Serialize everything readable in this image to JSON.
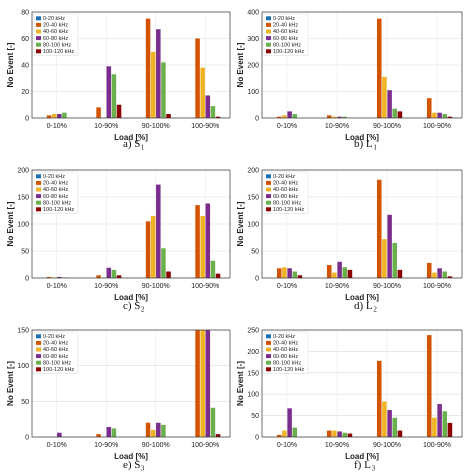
{
  "legend_labels": [
    "0-20 kHz",
    "20-40 kHz",
    "40-60 kHz",
    "60-80 kHz",
    "80-100 kHz",
    "100-120 kHz"
  ],
  "series_colors": [
    "#1f6fb4",
    "#d35400",
    "#f0b323",
    "#7b2d8e",
    "#6ab04c",
    "#8b0000"
  ],
  "categories": [
    "0-10%",
    "10-90%",
    "90-100%",
    "100-90%"
  ],
  "xlabel": "Load [%]",
  "ylabel": "No Event [-]",
  "chart_data": [
    {
      "type": "bar",
      "caption_main": "a) S",
      "caption_sub": "1",
      "categories": [
        "0-10%",
        "10-90%",
        "90-100%",
        "100-90%"
      ],
      "ylim": [
        0,
        80
      ],
      "yticks": [
        0,
        20,
        40,
        60,
        80
      ],
      "xlabel": "Load [%]",
      "ylabel": "No Event [-]",
      "grid": true,
      "legend": "top-left",
      "series": [
        {
          "name": "0-20 kHz",
          "values": [
            0,
            0,
            0,
            0
          ]
        },
        {
          "name": "20-40 kHz",
          "values": [
            2,
            8,
            75,
            60
          ]
        },
        {
          "name": "40-60 kHz",
          "values": [
            3,
            0,
            50,
            38
          ]
        },
        {
          "name": "60-80 kHz",
          "values": [
            3,
            39,
            67,
            17
          ]
        },
        {
          "name": "80-100 kHz",
          "values": [
            4,
            33,
            42,
            9
          ]
        },
        {
          "name": "100-120 kHz",
          "values": [
            0,
            10,
            3,
            1
          ]
        }
      ]
    },
    {
      "type": "bar",
      "caption_main": "b) L",
      "caption_sub": "1",
      "categories": [
        "0-10%",
        "10-90%",
        "90-100%",
        "100-90%"
      ],
      "ylim": [
        0,
        400
      ],
      "yticks": [
        0,
        100,
        200,
        300,
        400
      ],
      "xlabel": "Load [%]",
      "ylabel": "No Event [-]",
      "grid": true,
      "legend": "top-left",
      "series": [
        {
          "name": "0-20 kHz",
          "values": [
            0,
            0,
            0,
            0
          ]
        },
        {
          "name": "20-40 kHz",
          "values": [
            5,
            10,
            375,
            75
          ]
        },
        {
          "name": "40-60 kHz",
          "values": [
            10,
            5,
            155,
            20
          ]
        },
        {
          "name": "60-80 kHz",
          "values": [
            25,
            5,
            105,
            20
          ]
        },
        {
          "name": "80-100 kHz",
          "values": [
            15,
            5,
            35,
            15
          ]
        },
        {
          "name": "100-120 kHz",
          "values": [
            0,
            0,
            25,
            5
          ]
        }
      ]
    },
    {
      "type": "bar",
      "caption_main": "c) S",
      "caption_sub": "2",
      "categories": [
        "0-10%",
        "10-90%",
        "90-100%",
        "100-90%"
      ],
      "ylim": [
        0,
        200
      ],
      "yticks": [
        0,
        50,
        100,
        150,
        200
      ],
      "xlabel": "Load [%]",
      "ylabel": "No Event [-]",
      "grid": true,
      "legend": "top-left",
      "series": [
        {
          "name": "0-20 kHz",
          "values": [
            0,
            0,
            0,
            0
          ]
        },
        {
          "name": "20-40 kHz",
          "values": [
            2,
            5,
            105,
            135
          ]
        },
        {
          "name": "40-60 kHz",
          "values": [
            1,
            0,
            115,
            115
          ]
        },
        {
          "name": "60-80 kHz",
          "values": [
            2,
            19,
            173,
            138
          ]
        },
        {
          "name": "80-100 kHz",
          "values": [
            1,
            15,
            55,
            32
          ]
        },
        {
          "name": "100-120 kHz",
          "values": [
            0,
            5,
            12,
            8
          ]
        }
      ]
    },
    {
      "type": "bar",
      "caption_main": "d) L",
      "caption_sub": "2",
      "categories": [
        "0-10%",
        "10-90%",
        "90-100%",
        "100-90%"
      ],
      "ylim": [
        0,
        200
      ],
      "yticks": [
        0,
        50,
        100,
        150,
        200
      ],
      "xlabel": "Load [%]",
      "ylabel": "No Event [-]",
      "grid": true,
      "legend": "top-left",
      "series": [
        {
          "name": "0-20 kHz",
          "values": [
            0,
            0,
            0,
            0
          ]
        },
        {
          "name": "20-40 kHz",
          "values": [
            18,
            24,
            182,
            28
          ]
        },
        {
          "name": "40-60 kHz",
          "values": [
            20,
            10,
            72,
            10
          ]
        },
        {
          "name": "60-80 kHz",
          "values": [
            18,
            30,
            117,
            18
          ]
        },
        {
          "name": "80-100 kHz",
          "values": [
            12,
            20,
            65,
            12
          ]
        },
        {
          "name": "100-120 kHz",
          "values": [
            5,
            15,
            15,
            3
          ]
        }
      ]
    },
    {
      "type": "bar",
      "caption_main": "e) S",
      "caption_sub": "3",
      "categories": [
        "0-10%",
        "10-90%",
        "90-100%",
        "100-90%"
      ],
      "ylim": [
        0,
        150
      ],
      "yticks": [
        0,
        50,
        100,
        150
      ],
      "xlabel": "Load [%]",
      "ylabel": "No Event [-]",
      "grid": true,
      "legend": "top-left",
      "series": [
        {
          "name": "0-20 kHz",
          "values": [
            0,
            0,
            0,
            0
          ]
        },
        {
          "name": "20-40 kHz",
          "values": [
            0,
            4,
            20,
            150
          ]
        },
        {
          "name": "40-60 kHz",
          "values": [
            0,
            0,
            10,
            150
          ]
        },
        {
          "name": "60-80 kHz",
          "values": [
            6,
            14,
            20,
            150
          ]
        },
        {
          "name": "80-100 kHz",
          "values": [
            0,
            12,
            17,
            41
          ]
        },
        {
          "name": "100-120 kHz",
          "values": [
            0,
            0,
            0,
            4
          ]
        }
      ]
    },
    {
      "type": "bar",
      "caption_main": "f) L",
      "caption_sub": "3",
      "categories": [
        "0-10%",
        "10-90%",
        "90-100%",
        "100-90%"
      ],
      "ylim": [
        0,
        250
      ],
      "yticks": [
        0,
        50,
        100,
        150,
        200,
        250
      ],
      "xlabel": "Load [%]",
      "ylabel": "No Event [-]",
      "grid": true,
      "legend": "top-left",
      "series": [
        {
          "name": "0-20 kHz",
          "values": [
            0,
            0,
            0,
            0
          ]
        },
        {
          "name": "20-40 kHz",
          "values": [
            5,
            15,
            178,
            238
          ]
        },
        {
          "name": "40-60 kHz",
          "values": [
            15,
            15,
            83,
            45
          ]
        },
        {
          "name": "60-80 kHz",
          "values": [
            67,
            13,
            63,
            77
          ]
        },
        {
          "name": "80-100 kHz",
          "values": [
            22,
            10,
            45,
            60
          ]
        },
        {
          "name": "100-120 kHz",
          "values": [
            0,
            8,
            15,
            33
          ]
        }
      ]
    }
  ]
}
